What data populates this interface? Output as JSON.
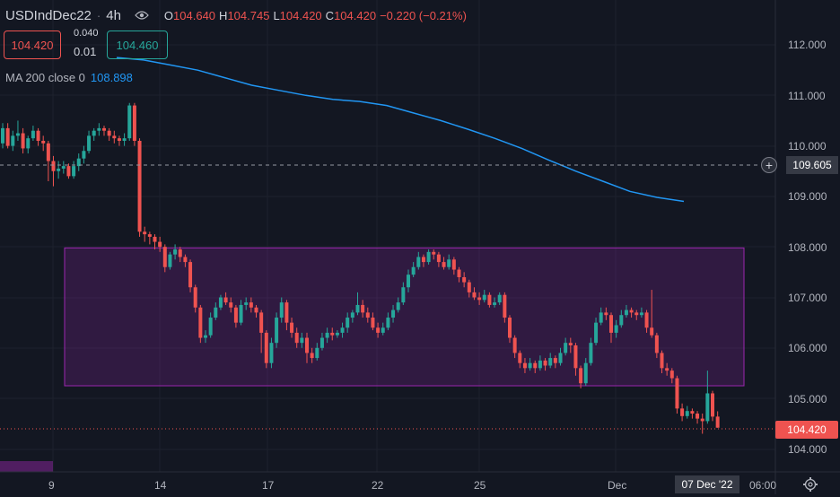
{
  "legend": {
    "symbol": "USDIndDec22",
    "interval": "4h",
    "open_key": "O",
    "open_val": "104.640",
    "high_key": "H",
    "high_val": "104.745",
    "low_key": "L",
    "low_val": "104.420",
    "close_key": "C",
    "close_val": "104.420",
    "change": "−0.220 (−0.21%)"
  },
  "trade": {
    "sell_price": "104.420",
    "buy_price": "104.460",
    "spread_top": "0.040",
    "spread_bottom": "0.01"
  },
  "indicator": {
    "name": "MA 200 close 0",
    "value": "108.898"
  },
  "price_axis": [
    "112.000",
    "111.000",
    "110.000",
    "109.000",
    "108.000",
    "107.000",
    "106.000",
    "105.000",
    "104.000"
  ],
  "time_axis": [
    "9",
    "14",
    "17",
    "22",
    "25",
    "Dec"
  ],
  "crosshair": {
    "price": "109.605",
    "time": "07 Dec '22",
    "time_extra": "06:00"
  },
  "last_price": "104.420",
  "icons": {
    "eye": "eye-icon",
    "plus": "crosshair-plus-icon",
    "gear": "settings-gear-icon"
  },
  "colors": {
    "up": "#26a69a",
    "down": "#ef5350",
    "ma": "#2196f3",
    "range_box": "#9c27b0",
    "background": "#131722"
  },
  "chart_data": {
    "type": "candlestick",
    "y_range": [
      103.6,
      112.6
    ],
    "ma_series": {
      "name": "MA 200 close 0",
      "values": [
        111.75,
        111.7,
        111.6,
        111.5,
        111.35,
        111.2,
        111.1,
        111.0,
        110.92,
        110.88,
        110.8,
        110.65,
        110.5,
        110.33,
        110.15,
        109.95,
        109.72,
        109.5,
        109.3,
        109.1,
        108.98,
        108.9
      ]
    },
    "range_box": {
      "low": 105.25,
      "high": 107.98,
      "start_candle": 16,
      "end_candle": 181
    },
    "candles": [
      [
        110.05,
        110.35,
        110.45,
        109.95
      ],
      [
        110.35,
        110.0,
        110.45,
        109.95
      ],
      [
        110.0,
        110.2,
        110.3,
        109.9
      ],
      [
        110.2,
        110.25,
        110.5,
        110.1
      ],
      [
        110.25,
        109.95,
        110.35,
        109.85
      ],
      [
        109.95,
        110.15,
        110.2,
        109.85
      ],
      [
        110.15,
        110.3,
        110.4,
        110.1
      ],
      [
        110.3,
        110.1,
        110.35,
        110.0
      ],
      [
        110.1,
        110.05,
        110.2,
        109.9
      ],
      [
        110.05,
        109.7,
        110.1,
        109.3
      ],
      [
        109.7,
        109.5,
        109.8,
        109.2
      ],
      [
        109.5,
        109.55,
        109.7,
        109.35
      ],
      [
        109.55,
        109.6,
        109.7,
        109.45
      ],
      [
        109.6,
        109.4,
        109.65,
        109.35
      ],
      [
        109.4,
        109.6,
        109.7,
        109.35
      ],
      [
        109.6,
        109.75,
        109.85,
        109.5
      ],
      [
        109.75,
        109.9,
        110.0,
        109.65
      ],
      [
        109.9,
        110.2,
        110.3,
        109.85
      ],
      [
        110.2,
        110.3,
        110.35,
        110.1
      ],
      [
        110.3,
        110.35,
        110.45,
        110.2
      ],
      [
        110.35,
        110.3,
        110.4,
        110.2
      ],
      [
        110.3,
        110.2,
        110.35,
        110.1
      ],
      [
        110.2,
        110.15,
        110.3,
        110.05
      ],
      [
        110.15,
        110.1,
        110.2,
        110.0
      ],
      [
        110.1,
        110.15,
        110.25,
        110.0
      ],
      [
        110.15,
        110.8,
        110.85,
        110.1
      ],
      [
        110.8,
        110.1,
        110.85,
        110.0
      ],
      [
        110.1,
        108.3,
        110.15,
        108.2
      ],
      [
        108.3,
        108.25,
        108.4,
        108.1
      ],
      [
        108.25,
        108.2,
        108.3,
        108.05
      ],
      [
        108.2,
        108.1,
        108.25,
        107.95
      ],
      [
        108.1,
        108.0,
        108.2,
        107.9
      ],
      [
        108.0,
        107.6,
        108.05,
        107.5
      ],
      [
        107.6,
        107.85,
        107.9,
        107.55
      ],
      [
        107.85,
        107.95,
        108.05,
        107.75
      ],
      [
        107.95,
        107.8,
        108.0,
        107.7
      ],
      [
        107.8,
        107.7,
        107.85,
        107.6
      ],
      [
        107.7,
        107.2,
        107.75,
        107.1
      ],
      [
        107.2,
        106.8,
        107.25,
        106.7
      ],
      [
        106.8,
        106.2,
        106.85,
        106.1
      ],
      [
        106.2,
        106.25,
        106.35,
        106.1
      ],
      [
        106.25,
        106.6,
        106.7,
        106.2
      ],
      [
        106.6,
        106.8,
        106.9,
        106.55
      ],
      [
        106.8,
        107.0,
        107.05,
        106.75
      ],
      [
        107.0,
        106.9,
        107.1,
        106.85
      ],
      [
        106.9,
        106.8,
        107.0,
        106.7
      ],
      [
        106.8,
        106.5,
        106.85,
        106.4
      ],
      [
        106.5,
        106.85,
        106.95,
        106.45
      ],
      [
        106.85,
        106.9,
        107.0,
        106.75
      ],
      [
        106.9,
        106.8,
        107.0,
        106.7
      ],
      [
        106.8,
        106.7,
        106.85,
        106.6
      ],
      [
        106.7,
        106.3,
        106.75,
        105.9
      ],
      [
        106.3,
        105.7,
        106.35,
        105.6
      ],
      [
        105.7,
        106.1,
        106.2,
        105.6
      ],
      [
        106.1,
        106.6,
        106.7,
        106.0
      ],
      [
        106.6,
        106.9,
        107.0,
        106.5
      ],
      [
        106.9,
        106.5,
        106.95,
        106.35
      ],
      [
        106.5,
        106.3,
        106.6,
        106.2
      ],
      [
        106.3,
        106.1,
        106.4,
        106.0
      ],
      [
        106.1,
        106.2,
        106.3,
        106.0
      ],
      [
        106.2,
        105.9,
        106.3,
        105.7
      ],
      [
        105.9,
        105.8,
        106.0,
        105.7
      ],
      [
        105.8,
        106.0,
        106.1,
        105.75
      ],
      [
        106.0,
        106.2,
        106.3,
        105.95
      ],
      [
        106.2,
        106.3,
        106.4,
        106.1
      ],
      [
        106.3,
        106.25,
        106.4,
        106.15
      ],
      [
        106.25,
        106.3,
        106.35,
        106.2
      ],
      [
        106.3,
        106.4,
        106.5,
        106.2
      ],
      [
        106.4,
        106.6,
        106.7,
        106.3
      ],
      [
        106.6,
        106.7,
        106.75,
        106.5
      ],
      [
        106.7,
        106.85,
        107.1,
        106.65
      ],
      [
        106.85,
        106.7,
        106.95,
        106.6
      ],
      [
        106.7,
        106.6,
        106.8,
        106.5
      ],
      [
        106.6,
        106.4,
        106.7,
        106.35
      ],
      [
        106.4,
        106.3,
        106.5,
        106.2
      ],
      [
        106.3,
        106.4,
        106.5,
        106.25
      ],
      [
        106.4,
        106.6,
        106.7,
        106.35
      ],
      [
        106.6,
        106.75,
        106.85,
        106.5
      ],
      [
        106.75,
        106.9,
        107.0,
        106.7
      ],
      [
        106.9,
        107.2,
        107.3,
        106.85
      ],
      [
        107.2,
        107.45,
        107.55,
        107.1
      ],
      [
        107.45,
        107.6,
        107.7,
        107.4
      ],
      [
        107.6,
        107.8,
        107.9,
        107.55
      ],
      [
        107.8,
        107.7,
        107.85,
        107.6
      ],
      [
        107.7,
        107.9,
        107.95,
        107.65
      ],
      [
        107.9,
        107.85,
        107.95,
        107.75
      ],
      [
        107.85,
        107.7,
        107.9,
        107.6
      ],
      [
        107.7,
        107.6,
        107.8,
        107.55
      ],
      [
        107.6,
        107.75,
        107.85,
        107.55
      ],
      [
        107.75,
        107.55,
        107.8,
        107.45
      ],
      [
        107.55,
        107.4,
        107.6,
        107.3
      ],
      [
        107.4,
        107.3,
        107.5,
        107.2
      ],
      [
        107.3,
        107.1,
        107.35,
        107.0
      ],
      [
        107.1,
        107.0,
        107.2,
        106.95
      ],
      [
        107.0,
        106.95,
        107.1,
        106.85
      ],
      [
        106.95,
        107.05,
        107.15,
        106.9
      ],
      [
        107.05,
        106.85,
        107.1,
        106.8
      ],
      [
        106.85,
        106.9,
        107.0,
        106.8
      ],
      [
        106.9,
        107.05,
        107.1,
        106.85
      ],
      [
        107.05,
        106.6,
        107.1,
        106.5
      ],
      [
        106.6,
        106.2,
        106.65,
        106.1
      ],
      [
        106.2,
        105.9,
        106.25,
        105.8
      ],
      [
        105.9,
        105.7,
        105.95,
        105.6
      ],
      [
        105.7,
        105.6,
        105.8,
        105.5
      ],
      [
        105.6,
        105.7,
        105.8,
        105.55
      ],
      [
        105.7,
        105.6,
        105.75,
        105.5
      ],
      [
        105.6,
        105.75,
        105.85,
        105.55
      ],
      [
        105.75,
        105.65,
        105.8,
        105.55
      ],
      [
        105.65,
        105.8,
        105.9,
        105.6
      ],
      [
        105.8,
        105.7,
        105.85,
        105.6
      ],
      [
        105.7,
        105.9,
        106.0,
        105.65
      ],
      [
        105.9,
        106.1,
        106.2,
        105.85
      ],
      [
        106.1,
        106.05,
        106.2,
        105.9
      ],
      [
        106.05,
        105.6,
        106.1,
        105.45
      ],
      [
        105.6,
        105.3,
        105.65,
        105.2
      ],
      [
        105.3,
        105.7,
        105.8,
        105.25
      ],
      [
        105.7,
        106.1,
        106.2,
        105.65
      ],
      [
        106.1,
        106.5,
        106.6,
        106.05
      ],
      [
        106.5,
        106.7,
        106.8,
        106.45
      ],
      [
        106.7,
        106.65,
        106.8,
        106.55
      ],
      [
        106.65,
        106.3,
        106.7,
        106.1
      ],
      [
        106.3,
        106.45,
        106.55,
        106.2
      ],
      [
        106.45,
        106.65,
        106.75,
        106.4
      ],
      [
        106.65,
        106.75,
        106.85,
        106.6
      ],
      [
        106.75,
        106.7,
        106.8,
        106.6
      ],
      [
        106.7,
        106.65,
        106.75,
        106.55
      ],
      [
        106.65,
        106.7,
        106.8,
        106.6
      ],
      [
        106.7,
        106.4,
        106.75,
        106.3
      ],
      [
        106.4,
        106.25,
        107.15,
        106.2
      ],
      [
        106.25,
        105.9,
        106.3,
        105.8
      ],
      [
        105.9,
        105.6,
        105.95,
        105.5
      ],
      [
        105.6,
        105.55,
        105.7,
        105.45
      ],
      [
        105.55,
        105.4,
        105.6,
        105.3
      ],
      [
        105.4,
        104.8,
        105.45,
        104.7
      ],
      [
        104.8,
        104.65,
        104.9,
        104.55
      ],
      [
        104.65,
        104.75,
        104.85,
        104.6
      ],
      [
        104.75,
        104.7,
        104.8,
        104.6
      ],
      [
        104.7,
        104.6,
        104.75,
        104.5
      ],
      [
        104.6,
        104.55,
        104.7,
        104.3
      ],
      [
        104.55,
        105.1,
        105.55,
        104.5
      ],
      [
        105.1,
        104.64,
        105.15,
        104.55
      ],
      [
        104.64,
        104.42,
        104.745,
        104.42
      ]
    ]
  }
}
